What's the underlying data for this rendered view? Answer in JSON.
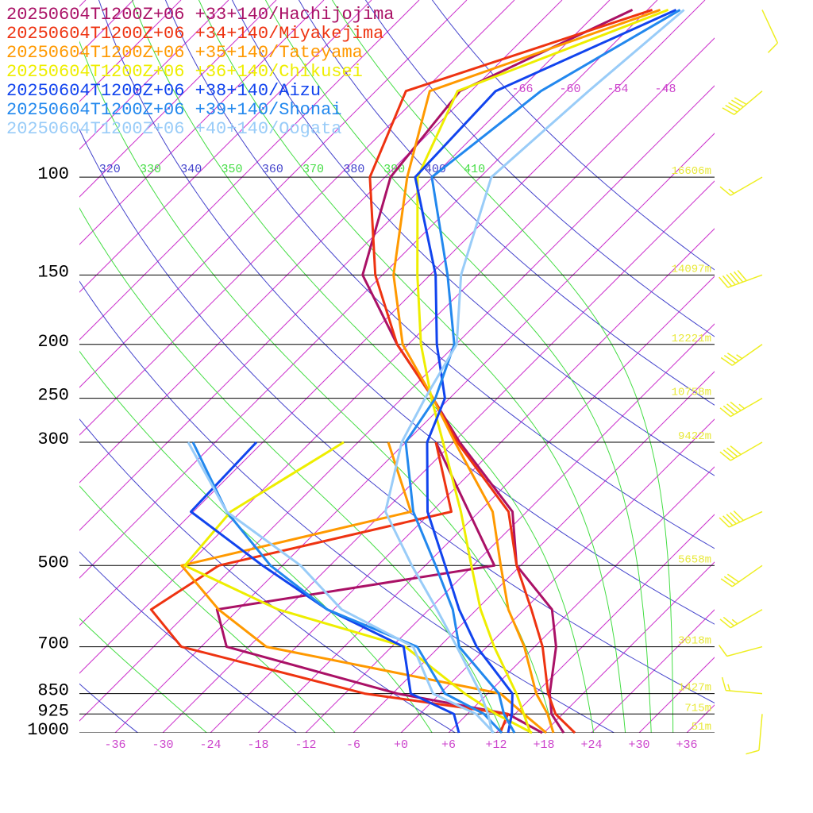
{
  "chart_data": {
    "type": "skewt",
    "pressure_levels": [
      1000,
      925,
      850,
      700,
      600,
      500,
      400,
      300,
      250,
      200,
      150,
      100,
      70,
      50
    ],
    "series": [
      {
        "name": "20250604T1200Z+06 +33+140/Hachijojima",
        "color": "#aa1166",
        "values": [
          20.5,
          16.6,
          13.8,
          8.7,
          3.5,
          -6.5,
          -13.8,
          -29.2,
          -38.1,
          -49.4,
          -62.5,
          -71.3,
          -73.4,
          -61.9
        ],
        "dewpoint": [
          17.8,
          11.1,
          -5.4,
          -32.8,
          -38.7,
          -9.3,
          -19.3,
          -32.2,
          null,
          null,
          null,
          null,
          null,
          null
        ]
      },
      {
        "name": "20250604T1200Z+06 +34+140/Miyakejima",
        "color": "#ee3311",
        "values": [
          21.9,
          17.1,
          13.6,
          7.0,
          0.9,
          -6.5,
          -14.3,
          -29.5,
          -38.1,
          -49.4,
          -60.9,
          -73.9,
          -80.2,
          -59.4
        ],
        "dewpoint": [
          12.5,
          11.1,
          -9.5,
          -38.5,
          -47.0,
          -44.0,
          -21.5,
          -32.2,
          null,
          null,
          null,
          null,
          null,
          null
        ]
      },
      {
        "name": "20250604T1200Z+06 +35+140/Tateyama",
        "color": "#ff9900",
        "values": [
          19.2,
          16.1,
          12.1,
          4.7,
          -2.0,
          -8.5,
          -16.3,
          -29.8,
          -38.1,
          -48.7,
          -58.6,
          -69.2,
          -77.2,
          -58.4
        ],
        "dewpoint": [
          18.3,
          13.1,
          7.6,
          -27.8,
          -38.5,
          -48.7,
          -26.6,
          -38.2,
          null,
          null,
          null,
          null,
          null,
          null
        ]
      },
      {
        "name": "20250604T1200Z+06 +36+140/Chikusei",
        "color": "#eeee00",
        "values": [
          16.3,
          13.1,
          9.6,
          0.9,
          -5.5,
          -12.2,
          -20.3,
          -31.3,
          -38.3,
          -46.4,
          -55.6,
          -67.9,
          -73.7,
          -57.4
        ],
        "dewpoint": [
          16.5,
          9.6,
          3.1,
          -10.3,
          -31.0,
          -48.3,
          -49.3,
          -43.8,
          null,
          null,
          null,
          null,
          null,
          null
        ]
      },
      {
        "name": "20250604T1200Z+06 +38+140/Aizu",
        "color": "#1144ee",
        "values": [
          13.5,
          11.6,
          9.1,
          -1.3,
          -8.2,
          -15.5,
          -24.5,
          -33.3,
          -36.6,
          -44.4,
          -53.3,
          -68.2,
          -68.9,
          -56.4
        ],
        "dewpoint": [
          7.3,
          4.3,
          -3.7,
          -10.5,
          -24.8,
          -38.5,
          -54.3,
          -54.8,
          null,
          null,
          null,
          null,
          null,
          null
        ]
      },
      {
        "name": "20250604T1200Z+06 +39+140/Shonai",
        "color": "#2288ee",
        "values": [
          14.3,
          10.6,
          7.4,
          -3.5,
          -9.0,
          -16.7,
          -26.3,
          -36.0,
          -37.8,
          -42.2,
          -51.8,
          -66.1,
          -63.2,
          -55.9
        ],
        "dewpoint": [
          12.7,
          8.1,
          0.6,
          -8.8,
          -24.8,
          -37.5,
          -49.8,
          -62.8,
          null,
          null,
          null,
          null,
          null,
          null
        ]
      },
      {
        "name": "20250604T1200Z+06 +40+140/Oogata",
        "color": "#99ccf8",
        "values": [
          11.5,
          8.6,
          5.1,
          -3.8,
          -11.0,
          -19.7,
          -29.8,
          -36.5,
          -39.1,
          -41.9,
          -50.1,
          -58.6,
          -57.2,
          -55.4
        ],
        "dewpoint": [
          11.7,
          7.1,
          -0.9,
          -9.3,
          -23.0,
          -33.7,
          -49.8,
          -63.4,
          null,
          null,
          null,
          null,
          null,
          null
        ]
      }
    ],
    "wind_direction": [
      null,
      185,
      275,
      255,
      240,
      235,
      245,
      240,
      240,
      235,
      250,
      240,
      230,
      155
    ],
    "wind_speed": [
      null,
      10,
      15,
      10,
      25,
      30,
      50,
      40,
      45,
      35,
      60,
      15,
      50,
      10
    ],
    "wind_color": "#eeee22",
    "ylim": [
      1000,
      48
    ],
    "yticks": [
      1000,
      925,
      850,
      700,
      500,
      300,
      250,
      200,
      150,
      100
    ],
    "height_labels": [
      "51m",
      "715m",
      "1427m",
      "3018m",
      "5658m",
      "9422m",
      "10758m",
      "12221m",
      "14097m",
      "16606m"
    ],
    "xlim": [
      -40.5,
      39.5
    ],
    "xticks": [
      -36,
      -30,
      -24,
      -18,
      -12,
      -6,
      {
        "value": 0,
        "label": "+0"
      },
      {
        "value": 6,
        "label": "+6"
      },
      {
        "value": 12,
        "label": "+12"
      },
      {
        "value": 18,
        "label": "+18"
      },
      {
        "value": 24,
        "label": "+24"
      },
      {
        "value": 30,
        "label": "+30"
      },
      {
        "value": 36,
        "label": "+36"
      }
    ],
    "isotherm_labels": [
      -66,
      -60,
      -54,
      -48
    ],
    "isotherms": [
      -132,
      -126,
      -120,
      -114,
      -108,
      -102,
      -96,
      -90,
      -84,
      -78,
      -72,
      -66,
      -60,
      -54,
      -48,
      -42,
      -36,
      -30,
      -24,
      -18,
      -12,
      -6,
      0,
      6,
      12,
      18,
      24,
      30,
      36
    ],
    "dry_adiabats": [
      240,
      260,
      280,
      300,
      320,
      340,
      360,
      380,
      400,
      420,
      440
    ],
    "moist_adiabats": [
      250,
      270,
      290,
      310,
      330,
      350,
      370,
      390,
      410
    ],
    "isotherm_color": "#cc33cc",
    "dry_adiabat_color": "#4444cc",
    "moist_adiabat_color": "#44dd44"
  }
}
